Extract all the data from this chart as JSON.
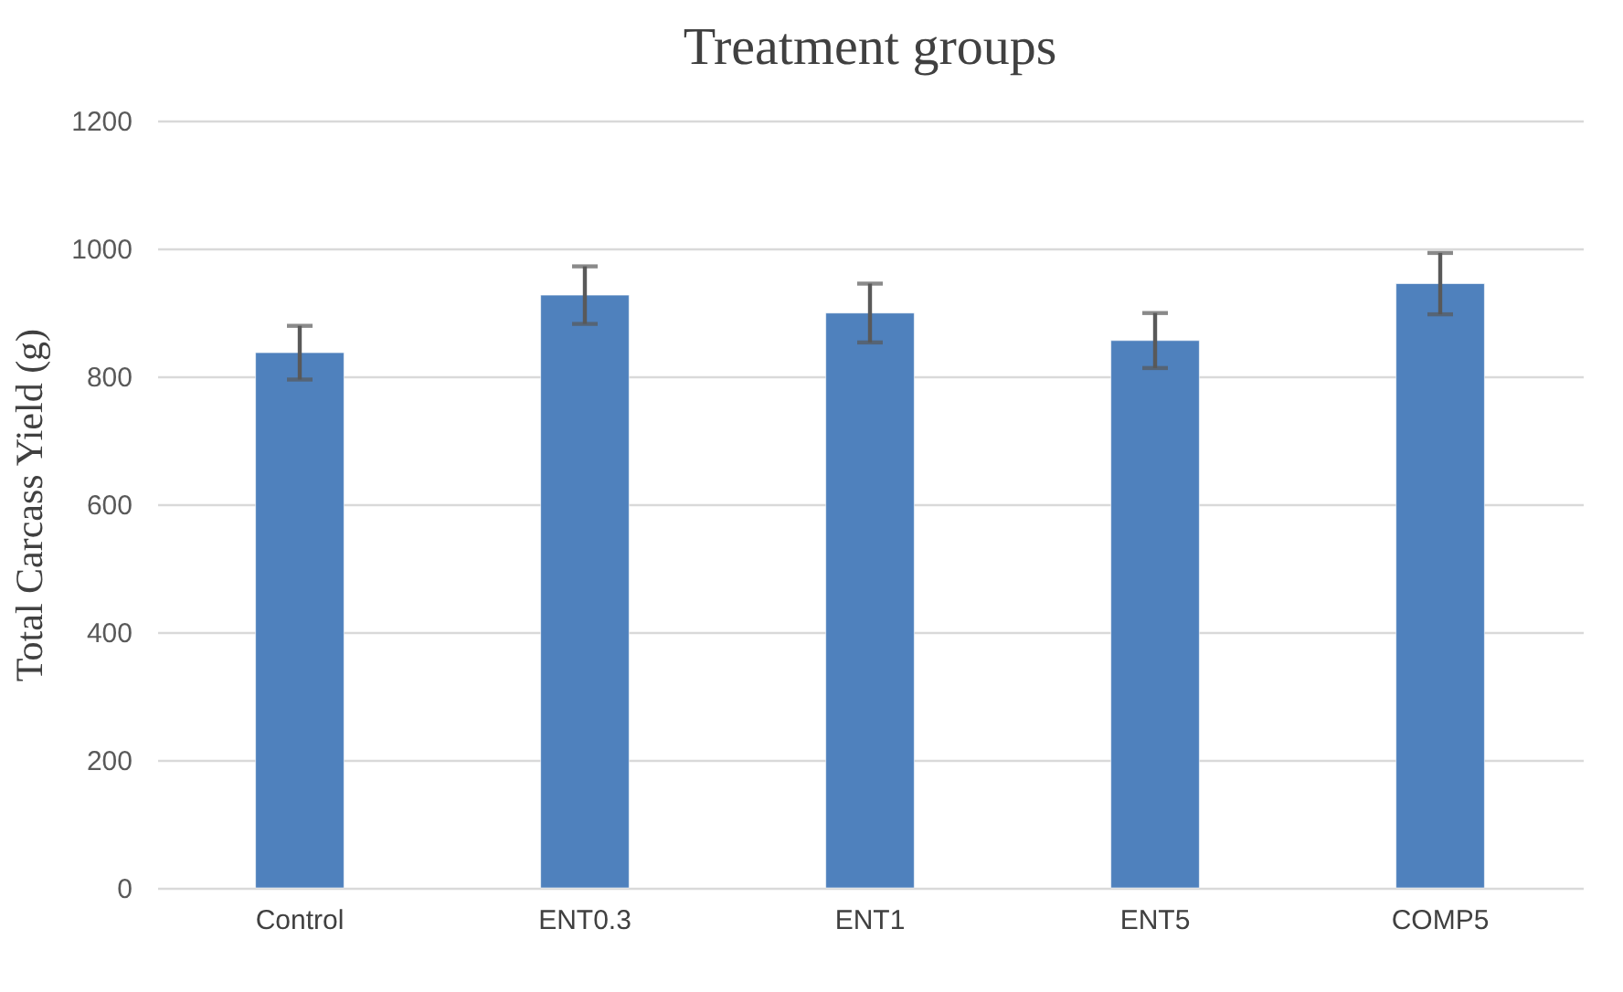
{
  "chart_data": {
    "type": "bar",
    "title": "Treatment groups",
    "ylabel": "Total Carcass Yield (g)",
    "categories": [
      "Control",
      "ENT0.3",
      "ENT1",
      "ENT5",
      "COMP5"
    ],
    "values": [
      837,
      927,
      899,
      856,
      945
    ],
    "errors": [
      42,
      45,
      46,
      43,
      48
    ],
    "color": "#4f81bd",
    "ylim": [
      0,
      1200
    ],
    "yticks": [
      0,
      200,
      400,
      600,
      800,
      1000,
      1200
    ],
    "grid": "y"
  }
}
